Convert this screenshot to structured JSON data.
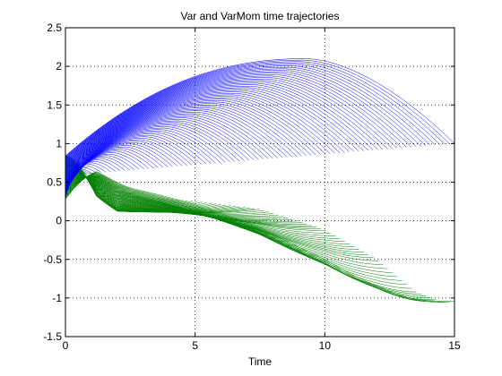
{
  "chart_data": {
    "type": "line",
    "title": "Var and VarMom time trajectories",
    "xlabel": "Time",
    "ylabel": "",
    "xlim": [
      0,
      15
    ],
    "ylim": [
      -1.5,
      2.5
    ],
    "xticks": [
      0,
      5,
      10,
      15
    ],
    "yticks": [
      -1.5,
      -1,
      -0.5,
      0,
      0.5,
      1,
      1.5,
      2,
      2.5
    ],
    "xtick_labels": [
      "0",
      "5",
      "10",
      "15"
    ],
    "ytick_labels": [
      "-1.5",
      "-1",
      "-0.5",
      "0",
      "0.5",
      "1",
      "1.5",
      "2",
      "2.5"
    ],
    "grid": true,
    "grid_style": "dotted",
    "trajectory_count": 80,
    "series": [
      {
        "color": "#0000ff",
        "t_start": 0,
        "t_end_range": [
          0.45,
          15
        ],
        "y_start_range": [
          0.28,
          0.84
        ],
        "peak_time_range": [
          0.2,
          9.3
        ],
        "peak_value_range": [
          0.62,
          2.1
        ],
        "y_end_range": [
          0.6,
          1.0
        ],
        "envelope_upper": {
          "x": [
            0,
            2.5,
            5,
            7.5,
            9.3,
            11,
            13,
            15
          ],
          "y": [
            0.28,
            1.42,
            1.78,
            2.0,
            2.1,
            1.95,
            1.55,
            1.0
          ]
        }
      },
      {
        "color": "#008000",
        "t_start": 0,
        "t_end_range": [
          0.5,
          15
        ],
        "y_start_range": [
          0.28,
          0.84
        ],
        "y_end_range": [
          0.55,
          -1.12
        ],
        "envelope_upper": {
          "x": [
            0,
            2.5,
            5,
            7.5,
            10,
            12,
            13.5,
            14.7,
            15
          ],
          "y": [
            0.84,
            0.6,
            0.58,
            0.5,
            0.2,
            -0.3,
            -0.85,
            -1.05,
            -1.04
          ]
        },
        "envelope_lower": {
          "x": [
            0,
            2,
            4,
            6,
            8,
            10,
            12,
            14.3,
            15
          ],
          "y": [
            0.8,
            -0.25,
            -0.43,
            -0.57,
            -0.7,
            -0.85,
            -0.97,
            -1.13,
            -1.05
          ]
        }
      }
    ]
  }
}
